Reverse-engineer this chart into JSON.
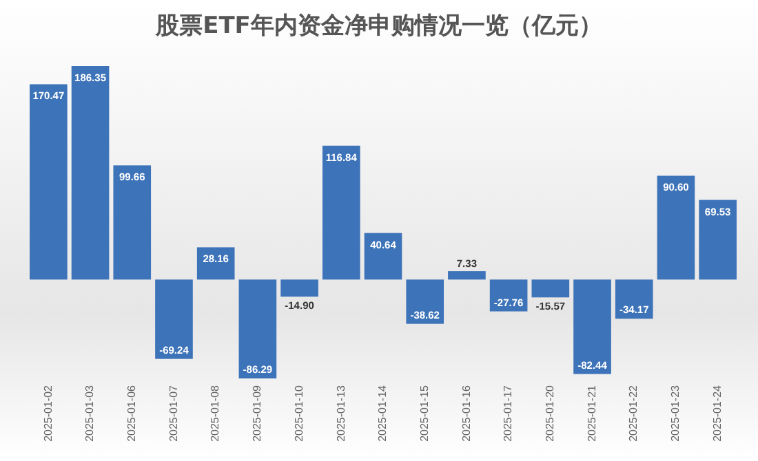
{
  "chart_data": {
    "type": "bar",
    "title": "股票ETF年内资金净申购情况一览（亿元）",
    "categories": [
      "2025-01-02",
      "2025-01-03",
      "2025-01-06",
      "2025-01-07",
      "2025-01-08",
      "2025-01-09",
      "2025-01-10",
      "2025-01-13",
      "2025-01-14",
      "2025-01-15",
      "2025-01-16",
      "2025-01-17",
      "2025-01-20",
      "2025-01-21",
      "2025-01-22",
      "2025-01-23",
      "2025-01-24"
    ],
    "values": [
      170.47,
      186.35,
      99.66,
      -69.24,
      28.16,
      -86.29,
      -14.9,
      116.84,
      40.64,
      -38.62,
      7.33,
      -27.76,
      -15.57,
      -82.44,
      -34.17,
      90.6,
      69.53
    ],
    "value_labels": [
      "170.47",
      "186.35",
      "99.66",
      "-69.24",
      "28.16",
      "-86.29",
      "-14.90",
      "116.84",
      "40.64",
      "-38.62",
      "7.33",
      "-27.76",
      "-15.57",
      "-82.44",
      "-34.17",
      "90.60",
      "69.53"
    ],
    "color": "#3d73b8"
  }
}
